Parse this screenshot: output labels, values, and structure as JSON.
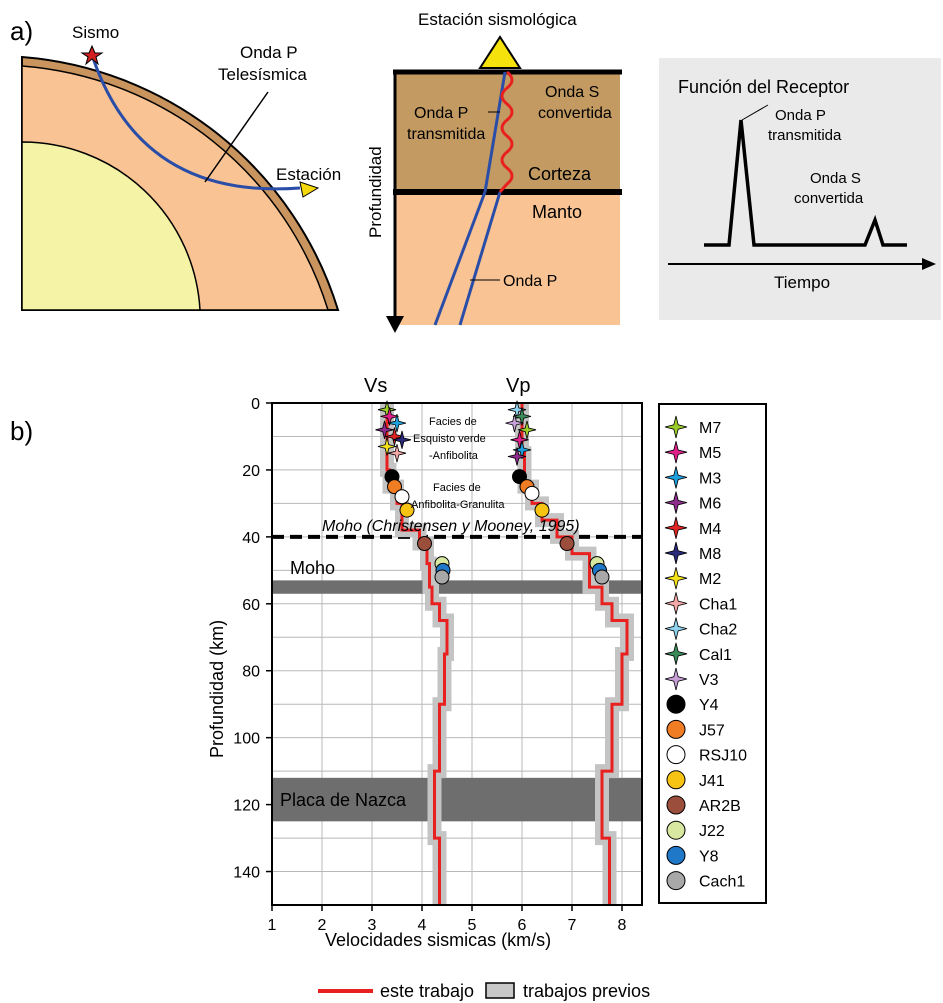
{
  "panel_a": {
    "label": "a)",
    "earth": {
      "quake_label": "Sismo",
      "wave_label_1": "Onda P",
      "wave_label_2": "Telesísmica",
      "station_label": "Estación"
    },
    "cross_section": {
      "title": "Estación sismológica",
      "axis_label": "Profundidad",
      "transmitted_1": "Onda P",
      "transmitted_2": "transmitida",
      "converted_1": "Onda S",
      "converted_2": "convertida",
      "crust": "Corteza",
      "mantle": "Manto",
      "p_wave": "Onda P"
    },
    "receiver_function": {
      "title": "Función del Receptor",
      "peak1_1": "Onda P",
      "peak1_2": "transmitida",
      "peak2_1": "Onda S",
      "peak2_2": "convertida",
      "time_label": "Tiempo"
    }
  },
  "panel_b": {
    "label": "b)",
    "vs_label": "Vs",
    "vp_label": "Vp",
    "ylabel": "Profundidad (km)",
    "xlabel": "Velocidades sismicas (km/s)",
    "yticks": [
      "0",
      "20",
      "40",
      "60",
      "80",
      "100",
      "120",
      "140"
    ],
    "xticks": [
      "1",
      "2",
      "3",
      "4",
      "5",
      "6",
      "7",
      "8"
    ],
    "facies_green_1": "Facies de",
    "facies_green_2": "Esquisto verde",
    "facies_green_3": "-Anfibolita",
    "facies_amph_1": "Facies de",
    "facies_amph_2": "Anfibolita-Granulita",
    "moho_ref": "Moho (Christensen y Mooney, 1995)",
    "moho": "Moho",
    "nazca": "Placa de Nazca",
    "legend_this": "este trabajo",
    "legend_prev": "trabajos previos",
    "stations": [
      {
        "name": "M7",
        "kind": "star",
        "color": "#9ccc2c"
      },
      {
        "name": "M5",
        "kind": "star",
        "color": "#e0208a"
      },
      {
        "name": "M3",
        "kind": "star",
        "color": "#1fa0dc"
      },
      {
        "name": "M6",
        "kind": "star",
        "color": "#8c2b8c"
      },
      {
        "name": "M4",
        "kind": "star",
        "color": "#e02424"
      },
      {
        "name": "M8",
        "kind": "star",
        "color": "#2a2a7a"
      },
      {
        "name": "M2",
        "kind": "star",
        "color": "#f4e21a"
      },
      {
        "name": "Cha1",
        "kind": "star",
        "color": "#f4a8a8"
      },
      {
        "name": "Cha2",
        "kind": "star",
        "color": "#8fd3ee"
      },
      {
        "name": "Cal1",
        "kind": "star",
        "color": "#3a8a5a"
      },
      {
        "name": "V3",
        "kind": "star",
        "color": "#c8a0d8"
      },
      {
        "name": "Y4",
        "kind": "dot",
        "color": "#000000"
      },
      {
        "name": "J57",
        "kind": "dot",
        "color": "#f07d24"
      },
      {
        "name": "RSJ10",
        "kind": "dot",
        "color": "#ffffff"
      },
      {
        "name": "J41",
        "kind": "dot",
        "color": "#f8c414"
      },
      {
        "name": "AR2B",
        "kind": "dot",
        "color": "#9c4e3c"
      },
      {
        "name": "J22",
        "kind": "dot",
        "color": "#d8e8a0"
      },
      {
        "name": "Y8",
        "kind": "dot",
        "color": "#1f78c8"
      },
      {
        "name": "Cach1",
        "kind": "dot",
        "color": "#a8a8a8"
      }
    ]
  },
  "chart_data": {
    "type": "line",
    "xlabel": "Velocidades sismicas (km/s)",
    "ylabel": "Profundidad (km)",
    "xlim": [
      1,
      8.4
    ],
    "ylim": [
      0,
      150
    ],
    "y_inverted": true,
    "grid": true,
    "moho_reference_depth": 40,
    "moho_band": [
      53,
      57
    ],
    "nazca_band": [
      112,
      125
    ],
    "series": [
      {
        "name": "Vs",
        "depth": [
          0,
          10,
          10,
          20,
          20,
          25,
          25,
          30,
          30,
          38,
          38,
          42,
          42,
          48,
          48,
          55,
          55,
          60,
          60,
          65,
          65,
          75,
          75,
          90,
          90,
          110,
          110,
          130,
          130,
          150
        ],
        "velocity": [
          3.3,
          3.3,
          3.3,
          3.3,
          3.35,
          3.35,
          3.5,
          3.5,
          3.6,
          3.6,
          3.95,
          3.95,
          4.1,
          4.1,
          4.15,
          4.15,
          4.2,
          4.2,
          4.35,
          4.35,
          4.5,
          4.5,
          4.45,
          4.45,
          4.35,
          4.35,
          4.25,
          4.25,
          4.35,
          4.35
        ]
      },
      {
        "name": "Vp",
        "depth": [
          0,
          15,
          15,
          25,
          25,
          30,
          30,
          35,
          35,
          40,
          40,
          45,
          45,
          55,
          55,
          60,
          60,
          65,
          65,
          75,
          75,
          90,
          90,
          110,
          110,
          130,
          130,
          150
        ],
        "velocity": [
          6.0,
          6.0,
          6.05,
          6.05,
          6.2,
          6.2,
          6.4,
          6.4,
          6.7,
          6.7,
          7.0,
          7.0,
          7.35,
          7.35,
          7.6,
          7.6,
          7.8,
          7.8,
          8.1,
          8.1,
          8.0,
          8.0,
          7.8,
          7.8,
          7.6,
          7.6,
          7.75,
          7.75
        ]
      }
    ],
    "points": {
      "stars_vs": [
        [
          3.3,
          2
        ],
        [
          3.35,
          4
        ],
        [
          3.5,
          6
        ],
        [
          3.25,
          8
        ],
        [
          3.45,
          10
        ],
        [
          3.6,
          11
        ],
        [
          3.3,
          13
        ],
        [
          3.5,
          15
        ]
      ],
      "stars_vp": [
        [
          5.9,
          2
        ],
        [
          6.0,
          4
        ],
        [
          5.85,
          6
        ],
        [
          6.1,
          8
        ],
        [
          5.95,
          11
        ],
        [
          6.0,
          14
        ],
        [
          5.9,
          16
        ]
      ],
      "dots_vs": [
        [
          3.4,
          22,
          "#000000"
        ],
        [
          3.45,
          25,
          "#f07d24"
        ],
        [
          3.6,
          28,
          "#ffffff"
        ],
        [
          3.7,
          32,
          "#f8c414"
        ],
        [
          4.05,
          42,
          "#9c4e3c"
        ],
        [
          4.4,
          48,
          "#d8e8a0"
        ],
        [
          4.42,
          50,
          "#1f78c8"
        ],
        [
          4.4,
          52,
          "#a8a8a8"
        ]
      ],
      "dots_vp": [
        [
          5.95,
          22,
          "#000000"
        ],
        [
          6.1,
          25,
          "#f07d24"
        ],
        [
          6.2,
          27,
          "#ffffff"
        ],
        [
          6.4,
          32,
          "#f8c414"
        ],
        [
          6.9,
          42,
          "#9c4e3c"
        ],
        [
          7.5,
          48,
          "#d8e8a0"
        ],
        [
          7.55,
          50,
          "#1f78c8"
        ],
        [
          7.6,
          52,
          "#a8a8a8"
        ]
      ]
    }
  }
}
